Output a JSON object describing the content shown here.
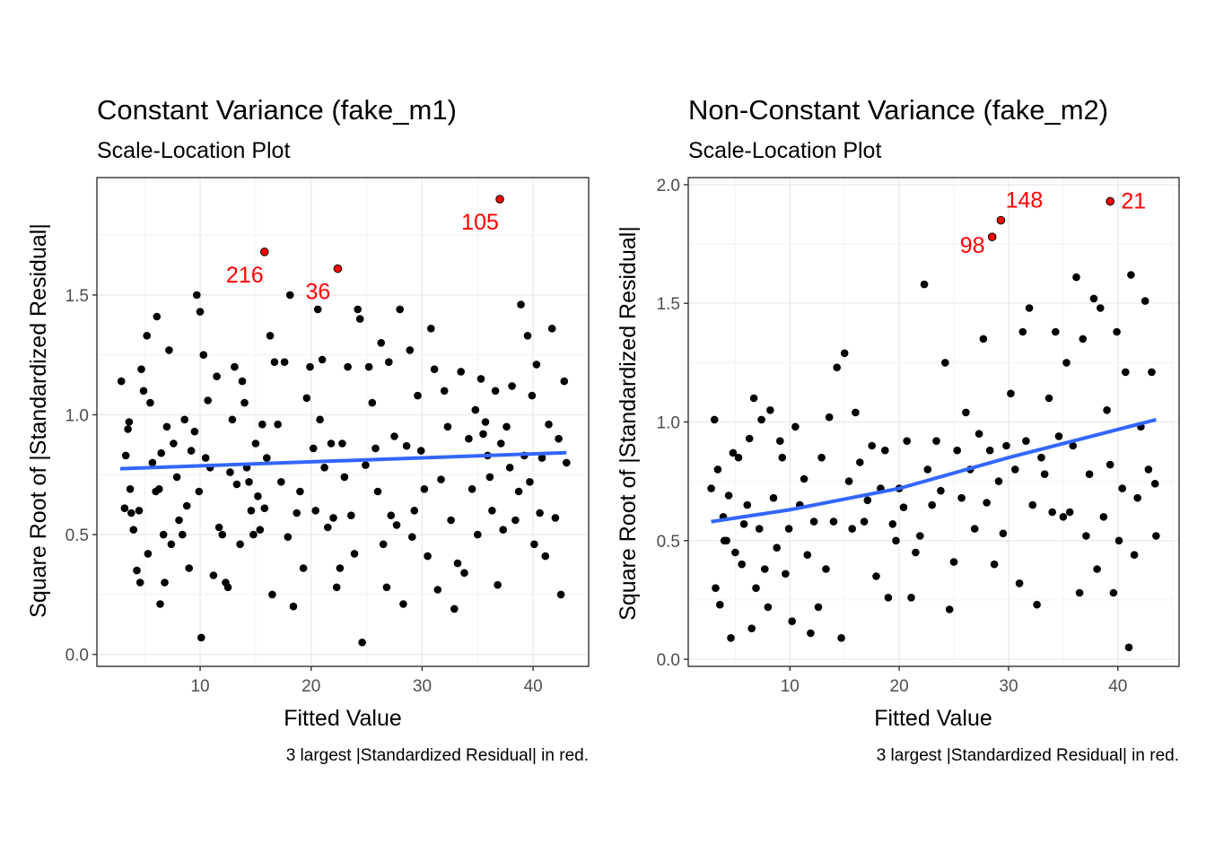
{
  "chart_data": [
    {
      "type": "scatter",
      "title": "Constant Variance (fake_m1)",
      "subtitle": "Scale-Location Plot",
      "xlabel": "Fitted Value",
      "ylabel": "Square Root of |Standardized Residual|",
      "caption": "3 largest |Standardized Residual| in red.",
      "xlim": [
        0.7,
        45.0
      ],
      "ylim": [
        -0.05,
        1.99
      ],
      "xticks": [
        10,
        20,
        30,
        40
      ],
      "yticks": [
        0.0,
        0.5,
        1.0,
        1.5
      ],
      "ytick_labels": [
        "0.0",
        "0.5",
        "1.0",
        "1.5"
      ],
      "grid": true,
      "smooth": [
        [
          2.8,
          0.775
        ],
        [
          43.0,
          0.842
        ]
      ],
      "smooth_color": "#3366ff",
      "outlier_color": "#ff0000",
      "outliers": [
        {
          "label": "105",
          "x": 37.0,
          "y": 1.9
        },
        {
          "label": "216",
          "x": 15.8,
          "y": 1.68
        },
        {
          "label": "36",
          "x": 22.4,
          "y": 1.61
        }
      ],
      "points": [
        [
          2.9,
          1.14
        ],
        [
          3.2,
          0.61
        ],
        [
          3.3,
          0.83
        ],
        [
          3.5,
          0.94
        ],
        [
          3.6,
          0.97
        ],
        [
          3.7,
          0.69
        ],
        [
          3.8,
          0.59
        ],
        [
          4.0,
          0.52
        ],
        [
          4.3,
          0.35
        ],
        [
          4.5,
          0.6
        ],
        [
          4.6,
          0.3
        ],
        [
          4.7,
          1.19
        ],
        [
          4.9,
          1.1
        ],
        [
          5.2,
          1.33
        ],
        [
          5.3,
          0.42
        ],
        [
          5.5,
          1.05
        ],
        [
          5.7,
          0.8
        ],
        [
          6.0,
          0.68
        ],
        [
          6.1,
          1.41
        ],
        [
          6.3,
          0.69
        ],
        [
          6.4,
          0.21
        ],
        [
          6.5,
          0.84
        ],
        [
          6.7,
          0.5
        ],
        [
          6.8,
          0.3
        ],
        [
          7.0,
          0.95
        ],
        [
          7.2,
          1.27
        ],
        [
          7.4,
          0.46
        ],
        [
          7.6,
          0.88
        ],
        [
          7.9,
          0.74
        ],
        [
          8.1,
          0.56
        ],
        [
          8.4,
          0.5
        ],
        [
          8.6,
          0.98
        ],
        [
          8.8,
          0.62
        ],
        [
          9.0,
          0.36
        ],
        [
          9.2,
          0.85
        ],
        [
          9.5,
          0.93
        ],
        [
          9.7,
          1.5
        ],
        [
          9.9,
          0.68
        ],
        [
          10.0,
          1.43
        ],
        [
          10.1,
          0.07
        ],
        [
          10.3,
          1.25
        ],
        [
          10.5,
          0.82
        ],
        [
          10.7,
          1.06
        ],
        [
          10.9,
          0.78
        ],
        [
          11.2,
          0.33
        ],
        [
          11.5,
          1.16
        ],
        [
          11.7,
          0.53
        ],
        [
          12.0,
          0.5
        ],
        [
          12.3,
          0.3
        ],
        [
          12.5,
          0.28
        ],
        [
          12.7,
          0.76
        ],
        [
          12.9,
          0.98
        ],
        [
          13.1,
          1.2
        ],
        [
          13.3,
          0.71
        ],
        [
          13.6,
          0.46
        ],
        [
          13.8,
          1.14
        ],
        [
          14.0,
          1.05
        ],
        [
          14.2,
          0.78
        ],
        [
          14.4,
          0.72
        ],
        [
          14.6,
          0.6
        ],
        [
          14.8,
          0.5
        ],
        [
          15.0,
          0.88
        ],
        [
          15.2,
          0.66
        ],
        [
          15.4,
          0.52
        ],
        [
          15.6,
          0.96
        ],
        [
          15.8,
          0.61
        ],
        [
          16.0,
          0.82
        ],
        [
          16.3,
          1.33
        ],
        [
          16.5,
          0.25
        ],
        [
          16.7,
          1.22
        ],
        [
          17.0,
          0.96
        ],
        [
          17.3,
          0.72
        ],
        [
          17.6,
          1.22
        ],
        [
          17.9,
          0.49
        ],
        [
          18.1,
          1.5
        ],
        [
          18.4,
          0.2
        ],
        [
          18.7,
          0.59
        ],
        [
          19.0,
          0.68
        ],
        [
          19.3,
          0.36
        ],
        [
          19.6,
          1.07
        ],
        [
          19.9,
          1.2
        ],
        [
          20.2,
          0.86
        ],
        [
          20.4,
          0.6
        ],
        [
          20.6,
          1.44
        ],
        [
          20.8,
          0.98
        ],
        [
          21.0,
          1.23
        ],
        [
          21.2,
          0.78
        ],
        [
          21.5,
          0.53
        ],
        [
          21.8,
          0.88
        ],
        [
          22.0,
          0.57
        ],
        [
          22.3,
          0.28
        ],
        [
          22.6,
          0.36
        ],
        [
          22.8,
          0.88
        ],
        [
          23.0,
          0.74
        ],
        [
          23.3,
          1.2
        ],
        [
          23.6,
          0.58
        ],
        [
          23.9,
          0.42
        ],
        [
          24.2,
          1.44
        ],
        [
          24.4,
          1.4
        ],
        [
          24.6,
          0.05
        ],
        [
          24.9,
          0.79
        ],
        [
          25.2,
          1.2
        ],
        [
          25.5,
          1.05
        ],
        [
          25.8,
          0.86
        ],
        [
          26.0,
          0.68
        ],
        [
          26.3,
          1.3
        ],
        [
          26.5,
          0.46
        ],
        [
          26.8,
          0.28
        ],
        [
          27.0,
          1.22
        ],
        [
          27.2,
          0.58
        ],
        [
          27.5,
          0.91
        ],
        [
          27.7,
          0.54
        ],
        [
          28.0,
          1.44
        ],
        [
          28.3,
          0.21
        ],
        [
          28.6,
          0.87
        ],
        [
          28.9,
          1.27
        ],
        [
          29.1,
          0.49
        ],
        [
          29.3,
          0.6
        ],
        [
          29.6,
          1.08
        ],
        [
          29.9,
          0.85
        ],
        [
          30.2,
          0.69
        ],
        [
          30.5,
          0.41
        ],
        [
          30.8,
          1.36
        ],
        [
          31.1,
          1.19
        ],
        [
          31.4,
          0.27
        ],
        [
          31.7,
          0.73
        ],
        [
          32.0,
          1.1
        ],
        [
          32.3,
          0.95
        ],
        [
          32.6,
          0.56
        ],
        [
          32.9,
          0.19
        ],
        [
          33.2,
          0.38
        ],
        [
          33.5,
          1.18
        ],
        [
          33.8,
          0.34
        ],
        [
          34.2,
          0.9
        ],
        [
          34.5,
          0.69
        ],
        [
          34.8,
          1.02
        ],
        [
          35.0,
          0.5
        ],
        [
          35.3,
          1.15
        ],
        [
          35.5,
          0.92
        ],
        [
          35.7,
          0.97
        ],
        [
          35.9,
          0.83
        ],
        [
          36.1,
          0.74
        ],
        [
          36.3,
          0.6
        ],
        [
          36.6,
          1.1
        ],
        [
          36.8,
          0.29
        ],
        [
          37.1,
          0.88
        ],
        [
          37.3,
          0.52
        ],
        [
          37.6,
          0.95
        ],
        [
          37.9,
          0.78
        ],
        [
          38.1,
          1.12
        ],
        [
          38.4,
          0.56
        ],
        [
          38.7,
          0.68
        ],
        [
          38.9,
          1.46
        ],
        [
          39.2,
          0.83
        ],
        [
          39.5,
          1.33
        ],
        [
          39.7,
          0.72
        ],
        [
          39.9,
          1.08
        ],
        [
          40.1,
          0.46
        ],
        [
          40.3,
          1.21
        ],
        [
          40.6,
          0.59
        ],
        [
          40.8,
          0.82
        ],
        [
          41.1,
          0.41
        ],
        [
          41.4,
          0.96
        ],
        [
          41.7,
          1.36
        ],
        [
          42.0,
          0.57
        ],
        [
          42.3,
          0.9
        ],
        [
          42.5,
          0.25
        ],
        [
          42.8,
          1.14
        ],
        [
          43.0,
          0.8
        ]
      ]
    },
    {
      "type": "scatter",
      "title": "Non-Constant Variance (fake_m2)",
      "subtitle": "Scale-Location Plot",
      "xlabel": "Fitted Value",
      "ylabel": "Square Root of |Standardized Residual|",
      "caption": "3 largest |Standardized Residual| in red.",
      "xlim": [
        0.7,
        45.6
      ],
      "ylim": [
        -0.03,
        2.03
      ],
      "xticks": [
        10,
        20,
        30,
        40
      ],
      "yticks": [
        0.0,
        0.5,
        1.0,
        1.5,
        2.0
      ],
      "ytick_labels": [
        "0.0",
        "0.5",
        "1.0",
        "1.5",
        "2.0"
      ],
      "grid": true,
      "smooth": [
        [
          2.8,
          0.58
        ],
        [
          10.0,
          0.63
        ],
        [
          20.0,
          0.72
        ],
        [
          30.0,
          0.85
        ],
        [
          43.5,
          1.01
        ]
      ],
      "smooth_color": "#3366ff",
      "outlier_color": "#ff0000",
      "outliers": [
        {
          "label": "21",
          "x": 39.3,
          "y": 1.93
        },
        {
          "label": "148",
          "x": 29.3,
          "y": 1.85
        },
        {
          "label": "98",
          "x": 28.5,
          "y": 1.78
        }
      ],
      "points": [
        [
          2.8,
          0.72
        ],
        [
          3.1,
          1.01
        ],
        [
          3.2,
          0.3
        ],
        [
          3.4,
          0.8
        ],
        [
          3.6,
          0.23
        ],
        [
          3.9,
          0.6
        ],
        [
          4.0,
          0.5
        ],
        [
          4.2,
          0.5
        ],
        [
          4.4,
          0.69
        ],
        [
          4.6,
          0.09
        ],
        [
          4.8,
          0.87
        ],
        [
          5.0,
          0.45
        ],
        [
          5.3,
          0.85
        ],
        [
          5.6,
          0.4
        ],
        [
          5.8,
          0.57
        ],
        [
          6.1,
          0.65
        ],
        [
          6.3,
          0.93
        ],
        [
          6.5,
          0.13
        ],
        [
          6.7,
          1.1
        ],
        [
          6.9,
          0.3
        ],
        [
          7.2,
          0.55
        ],
        [
          7.4,
          1.01
        ],
        [
          7.7,
          0.38
        ],
        [
          8.0,
          0.22
        ],
        [
          8.2,
          1.05
        ],
        [
          8.5,
          0.68
        ],
        [
          8.8,
          0.47
        ],
        [
          9.1,
          0.92
        ],
        [
          9.3,
          0.85
        ],
        [
          9.6,
          0.36
        ],
        [
          9.9,
          0.55
        ],
        [
          10.2,
          0.16
        ],
        [
          10.5,
          0.98
        ],
        [
          10.9,
          0.65
        ],
        [
          11.3,
          0.76
        ],
        [
          11.6,
          0.44
        ],
        [
          11.9,
          0.11
        ],
        [
          12.2,
          0.58
        ],
        [
          12.6,
          0.22
        ],
        [
          12.9,
          0.85
        ],
        [
          13.3,
          0.38
        ],
        [
          13.6,
          1.02
        ],
        [
          14.0,
          0.58
        ],
        [
          14.3,
          1.23
        ],
        [
          14.7,
          0.09
        ],
        [
          15.0,
          1.29
        ],
        [
          15.4,
          0.75
        ],
        [
          15.7,
          0.55
        ],
        [
          16.0,
          1.04
        ],
        [
          16.4,
          0.83
        ],
        [
          16.8,
          0.58
        ],
        [
          17.1,
          0.67
        ],
        [
          17.5,
          0.9
        ],
        [
          17.9,
          0.35
        ],
        [
          18.3,
          0.72
        ],
        [
          18.7,
          0.88
        ],
        [
          19.0,
          0.26
        ],
        [
          19.4,
          0.57
        ],
        [
          19.7,
          0.5
        ],
        [
          20.0,
          0.72
        ],
        [
          20.4,
          0.64
        ],
        [
          20.7,
          0.92
        ],
        [
          21.1,
          0.26
        ],
        [
          21.5,
          0.45
        ],
        [
          21.9,
          0.52
        ],
        [
          22.3,
          1.58
        ],
        [
          22.6,
          0.8
        ],
        [
          23.0,
          0.65
        ],
        [
          23.4,
          0.92
        ],
        [
          23.8,
          0.71
        ],
        [
          24.2,
          1.25
        ],
        [
          24.6,
          0.21
        ],
        [
          25.0,
          0.41
        ],
        [
          25.3,
          0.88
        ],
        [
          25.7,
          0.68
        ],
        [
          26.1,
          1.04
        ],
        [
          26.5,
          0.8
        ],
        [
          26.9,
          0.55
        ],
        [
          27.3,
          0.95
        ],
        [
          27.7,
          1.35
        ],
        [
          28.0,
          0.66
        ],
        [
          28.3,
          0.88
        ],
        [
          28.7,
          0.4
        ],
        [
          29.1,
          0.75
        ],
        [
          29.5,
          0.53
        ],
        [
          29.8,
          0.9
        ],
        [
          30.2,
          1.12
        ],
        [
          30.6,
          0.8
        ],
        [
          31.0,
          0.32
        ],
        [
          31.3,
          1.38
        ],
        [
          31.6,
          0.92
        ],
        [
          31.9,
          1.48
        ],
        [
          32.2,
          0.65
        ],
        [
          32.6,
          0.23
        ],
        [
          33.0,
          0.85
        ],
        [
          33.3,
          0.78
        ],
        [
          33.7,
          1.1
        ],
        [
          34.0,
          0.62
        ],
        [
          34.3,
          1.38
        ],
        [
          34.6,
          0.94
        ],
        [
          35.0,
          0.6
        ],
        [
          35.3,
          1.25
        ],
        [
          35.6,
          0.62
        ],
        [
          35.9,
          0.9
        ],
        [
          36.2,
          1.61
        ],
        [
          36.5,
          0.28
        ],
        [
          36.8,
          1.35
        ],
        [
          37.1,
          0.52
        ],
        [
          37.4,
          0.78
        ],
        [
          37.8,
          1.52
        ],
        [
          38.1,
          0.38
        ],
        [
          38.4,
          1.48
        ],
        [
          38.7,
          0.6
        ],
        [
          39.0,
          1.05
        ],
        [
          39.3,
          0.82
        ],
        [
          39.6,
          0.28
        ],
        [
          39.9,
          1.38
        ],
        [
          40.1,
          0.5
        ],
        [
          40.4,
          0.72
        ],
        [
          40.7,
          1.21
        ],
        [
          41.0,
          0.05
        ],
        [
          41.2,
          1.62
        ],
        [
          41.5,
          0.44
        ],
        [
          41.8,
          0.68
        ],
        [
          42.1,
          0.98
        ],
        [
          42.5,
          1.51
        ],
        [
          42.8,
          0.8
        ],
        [
          43.1,
          1.21
        ],
        [
          43.4,
          0.74
        ],
        [
          43.5,
          0.52
        ]
      ]
    }
  ]
}
